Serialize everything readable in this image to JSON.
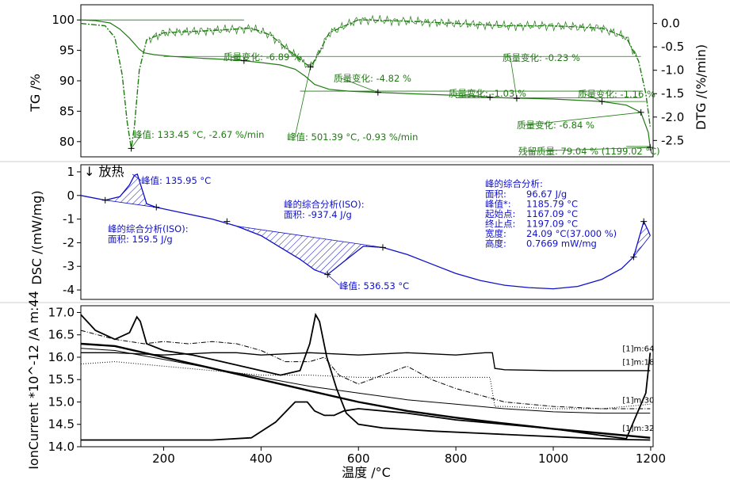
{
  "chart_data": [
    {
      "type": "line",
      "panel": "TG/DTG",
      "ylabel": "TG /%",
      "y2label": "DTG /(%/min)",
      "ylim": [
        77.5,
        102.5
      ],
      "yticks": [
        100,
        95,
        90,
        85,
        80
      ],
      "y2lim": [
        -2.85,
        0.4
      ],
      "y2ticks": [
        "0.0",
        "-0.5",
        "-1.0",
        "-1.5",
        "-2.0",
        "-2.5"
      ],
      "y2tick_values": [
        0.0,
        -0.5,
        -1.0,
        -1.5,
        -2.0,
        -2.5
      ],
      "color": "#1f7a12",
      "series": [
        {
          "id": "TG",
          "x": [
            30,
            60,
            90,
            110,
            130,
            150,
            160,
            180,
            220,
            280,
            330,
            365,
            400,
            440,
            470,
            490,
            510,
            540,
            580,
            640,
            700,
            800,
            900,
            1000,
            1100,
            1150,
            1180,
            1195,
            1199
          ],
          "y": [
            100.0,
            99.9,
            99.5,
            98.5,
            97.0,
            95.2,
            94.6,
            94.3,
            94.0,
            93.7,
            93.5,
            93.3,
            93.0,
            92.6,
            91.9,
            90.8,
            89.4,
            88.6,
            88.3,
            88.1,
            87.9,
            87.6,
            87.2,
            87.0,
            86.6,
            86.0,
            84.8,
            81.5,
            79.04
          ]
        },
        {
          "id": "DTG",
          "x": [
            30,
            80,
            100,
            115,
            125,
            133.45,
            140,
            150,
            165,
            200,
            300,
            380,
            420,
            460,
            490,
            501.39,
            515,
            540,
            600,
            700,
            800,
            900,
            1000,
            1100,
            1150,
            1175,
            1190,
            1199
          ],
          "y": [
            0.0,
            -0.05,
            -0.3,
            -1.1,
            -2.1,
            -2.67,
            -2.2,
            -1.0,
            -0.35,
            -0.2,
            -0.15,
            -0.1,
            -0.25,
            -0.6,
            -0.85,
            -0.93,
            -0.7,
            -0.2,
            0.08,
            0.05,
            0.0,
            -0.05,
            -0.05,
            -0.1,
            -0.3,
            -0.8,
            -1.5,
            -2.2
          ]
        }
      ],
      "annotations": [
        {
          "text": "质量变化: -6.89 %",
          "x": 365,
          "y": 93.3
        },
        {
          "text": "质量变化: -4.82 %",
          "x": 640,
          "y": 88.1
        },
        {
          "text": "质量变化: -0.23 %",
          "x": 925,
          "y": 87.1
        },
        {
          "text": "质量变化: -1.03 %",
          "x": 870,
          "y": 87.3
        },
        {
          "text": "质量变化: -1.16 %",
          "x": 1100,
          "y": 86.6
        },
        {
          "text": "质量变化: -6.84 %",
          "x": 1180,
          "y": 84.8
        },
        {
          "text": "峰值: 133.45 °C, -2.67 %/min",
          "x": 133.45,
          "y": -2.67
        },
        {
          "text": "峰值: 501.39 °C, -0.93 %/min",
          "x": 501.39,
          "y": -0.93
        },
        {
          "text": "残留质量: 79.04 % (1199.02 °C)",
          "x": 1199,
          "y": 79.04
        }
      ]
    },
    {
      "type": "line",
      "panel": "DSC",
      "ylabel": "DSC /(mW/mg)",
      "ylim": [
        -4.4,
        1.3
      ],
      "yticks": [
        1,
        0,
        -1,
        -2,
        -3,
        -4
      ],
      "exo_label": "↓ 放热",
      "color": "#1010c8",
      "series": [
        {
          "id": "DSC",
          "x": [
            30,
            80,
            110,
            130,
            140,
            146,
            152,
            165,
            185,
            230,
            300,
            350,
            400,
            440,
            480,
            510,
            536.53,
            570,
            610,
            650,
            700,
            750,
            800,
            850,
            900,
            950,
            1000,
            1050,
            1100,
            1140,
            1165,
            1185.79,
            1195,
            1199
          ],
          "y": [
            0.0,
            -0.2,
            -0.05,
            0.45,
            0.85,
            0.9,
            0.5,
            -0.35,
            -0.5,
            -0.7,
            -1.0,
            -1.3,
            -1.7,
            -2.2,
            -2.7,
            -3.15,
            -3.35,
            -2.8,
            -2.15,
            -2.2,
            -2.5,
            -2.9,
            -3.3,
            -3.6,
            -3.8,
            -3.9,
            -3.95,
            -3.85,
            -3.55,
            -3.1,
            -2.6,
            -1.1,
            -1.5,
            -1.7
          ]
        }
      ],
      "annotations": [
        {
          "text": "峰值: 135.95 °C",
          "x": 135.95,
          "y": 0.9
        },
        {
          "text": "峰的综合分析(ISO):",
          "x": 190,
          "y": -0.5
        },
        {
          "text": "面积: 159.5 J/g",
          "x": 190,
          "y": -0.5
        },
        {
          "text": "峰的综合分析(ISO):",
          "x": 420,
          "y": -2.1
        },
        {
          "text": "面积: -937.4 J/g",
          "x": 420,
          "y": -2.1
        },
        {
          "text": "峰值: 536.53 °C",
          "x": 536.53,
          "y": -3.35
        }
      ],
      "peak_analysis": {
        "title": "峰的综合分析:",
        "rows": [
          {
            "label": "面积:",
            "value": "96.67 J/g"
          },
          {
            "label": "峰值*:",
            "value": "1185.79 °C"
          },
          {
            "label": "起始点:",
            "value": "1167.09 °C"
          },
          {
            "label": "终止点:",
            "value": "1197.09 °C"
          },
          {
            "label": "宽度:",
            "value": "24.09 °C(37.000 %)"
          },
          {
            "label": "高度:",
            "value": "0.7669 mW/mg"
          }
        ]
      }
    },
    {
      "type": "line",
      "panel": "MS",
      "ylabel": "IonCurrent *10^-12 /A m:44",
      "ylim": [
        14.0,
        17.15
      ],
      "yticks": [
        "17.0",
        "16.5",
        "16.0",
        "15.5",
        "15.0",
        "14.5",
        "14.0"
      ],
      "ytick_values": [
        17.0,
        16.5,
        16.0,
        15.5,
        15.0,
        14.5,
        14.0
      ],
      "xlabel": "温度 /°C",
      "xlim": [
        30,
        1205
      ],
      "xticks": [
        200,
        400,
        600,
        800,
        1000,
        1200
      ],
      "color": "#000000",
      "series": [
        {
          "id": "m44",
          "x": [
            30,
            60,
            100,
            130,
            145,
            152,
            165,
            200,
            260,
            320,
            380,
            440,
            480,
            500,
            512,
            520,
            535,
            555,
            575,
            600,
            650,
            750,
            850,
            950,
            1050,
            1150,
            1199
          ],
          "y": [
            16.95,
            16.6,
            16.4,
            16.55,
            16.9,
            16.8,
            16.3,
            16.15,
            16.05,
            15.9,
            15.75,
            15.6,
            15.7,
            16.3,
            16.95,
            16.8,
            16.0,
            15.3,
            14.75,
            14.5,
            14.42,
            14.35,
            14.3,
            14.25,
            14.2,
            14.16,
            14.15
          ]
        },
        {
          "id": "m64",
          "x": [
            30,
            100,
            200,
            300,
            350,
            400,
            500,
            600,
            700,
            800,
            860,
            875,
            880,
            900,
            1000,
            1100,
            1199
          ],
          "y": [
            16.1,
            16.1,
            16.05,
            16.1,
            16.1,
            16.05,
            16.1,
            16.05,
            16.1,
            16.05,
            16.1,
            16.1,
            15.75,
            15.72,
            15.7,
            15.7,
            15.7
          ]
        },
        {
          "id": "m18",
          "x": [
            30,
            100,
            200,
            300,
            400,
            500,
            600,
            700,
            800,
            900,
            1000,
            1100,
            1199
          ],
          "y": [
            16.3,
            16.25,
            16.0,
            15.75,
            15.5,
            15.25,
            15.0,
            14.8,
            14.65,
            14.52,
            14.4,
            14.3,
            14.2
          ]
        },
        {
          "id": "m30",
          "x": [
            30,
            100,
            200,
            300,
            400,
            500,
            600,
            700,
            800,
            900,
            1000,
            1100,
            1199
          ],
          "y": [
            16.2,
            16.15,
            15.95,
            15.75,
            15.55,
            15.35,
            15.2,
            15.05,
            14.95,
            14.85,
            14.78,
            14.75,
            14.75
          ]
        },
        {
          "id": "m32",
          "x": [
            30,
            300,
            380,
            430,
            470,
            495,
            510,
            530,
            550,
            570,
            600,
            700,
            800,
            900,
            1000,
            1100,
            1150,
            1190,
            1199
          ],
          "y": [
            14.15,
            14.15,
            14.2,
            14.55,
            15.0,
            15.0,
            14.8,
            14.7,
            14.7,
            14.8,
            14.85,
            14.75,
            14.6,
            14.5,
            14.4,
            14.25,
            14.18,
            15.2,
            16.1
          ]
        },
        {
          "id": "dotted",
          "x": [
            30,
            100,
            200,
            300,
            400,
            500,
            600,
            700,
            800,
            870,
            880,
            900,
            1000,
            1100,
            1199
          ],
          "y": [
            15.85,
            15.9,
            15.8,
            15.7,
            15.6,
            15.6,
            15.55,
            15.55,
            15.55,
            15.55,
            14.9,
            14.9,
            14.85,
            14.85,
            14.95
          ]
        },
        {
          "id": "dashdot",
          "x": [
            30,
            100,
            160,
            200,
            250,
            300,
            350,
            400,
            450,
            500,
            530,
            560,
            600,
            650,
            700,
            750,
            800,
            850,
            900,
            1000,
            1100,
            1199
          ],
          "y": [
            16.6,
            16.4,
            16.3,
            16.35,
            16.3,
            16.35,
            16.3,
            16.15,
            15.9,
            15.9,
            16.0,
            15.6,
            15.4,
            15.6,
            15.8,
            15.5,
            15.3,
            15.15,
            15.0,
            14.9,
            14.85,
            14.85
          ]
        }
      ],
      "legend_labels": [
        {
          "text": "[1]m:64",
          "x": 1199,
          "y": 16.1
        },
        {
          "text": "[1]m:18",
          "x": 1199,
          "y": 15.8
        },
        {
          "text": "[1]m:30",
          "x": 1199,
          "y": 14.95
        },
        {
          "text": "[1]m:32",
          "x": 1199,
          "y": 14.32
        }
      ]
    }
  ]
}
